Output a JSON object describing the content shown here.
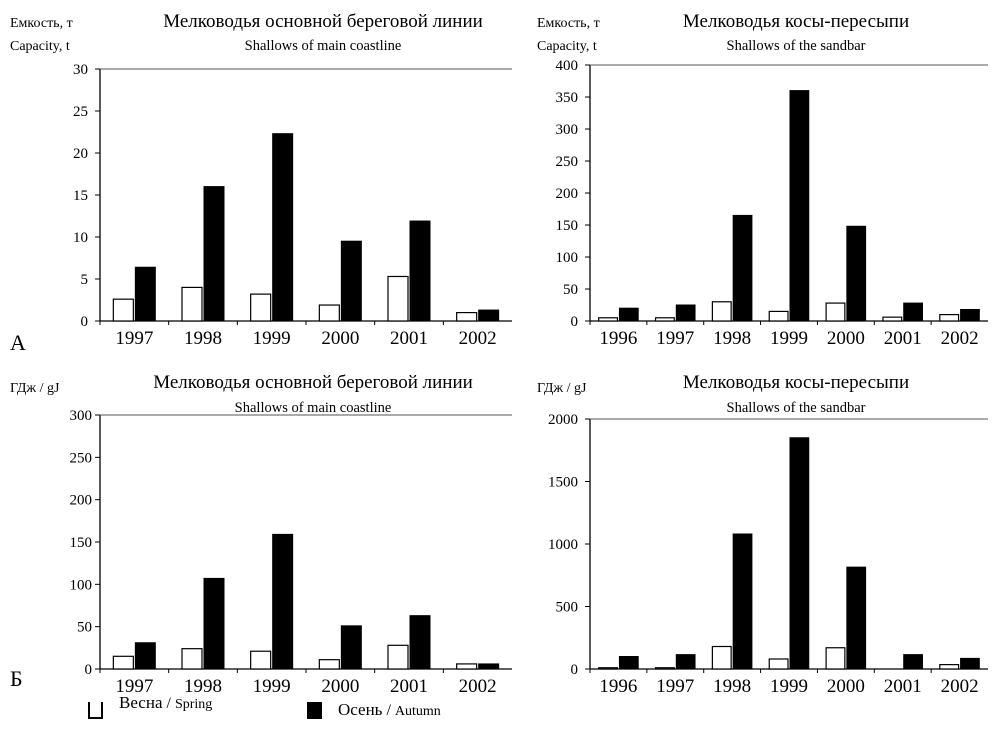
{
  "panel_letters": [
    "А",
    "Б"
  ],
  "legend": {
    "spring": {
      "ru": "Весна",
      "sep": " / ",
      "en": "Spring",
      "color": "#ffffff"
    },
    "autumn": {
      "ru": "Осень",
      "sep": " / ",
      "en": "Autumn",
      "color": "#000000"
    }
  },
  "chart_data": [
    {
      "type": "bar",
      "title": "Мелководья основной береговой линии",
      "subtitle": "Shallows of main coastline",
      "ylabel": [
        "Емкость, т",
        "Capacity, t"
      ],
      "ylim": [
        0,
        30
      ],
      "yticks": [
        0,
        5,
        10,
        15,
        20,
        25,
        30
      ],
      "categories": [
        "1997",
        "1998",
        "1999",
        "2000",
        "2001",
        "2002"
      ],
      "series": [
        {
          "name": "Весна / Spring",
          "values": [
            2.6,
            4.0,
            3.2,
            1.9,
            5.3,
            1.0
          ]
        },
        {
          "name": "Осень / Autumn",
          "values": [
            6.4,
            16.0,
            22.3,
            9.5,
            11.9,
            1.3
          ]
        }
      ]
    },
    {
      "type": "bar",
      "title": "Мелководья косы-пересыпи",
      "subtitle": "Shallows of the sandbar",
      "ylabel": [
        "Емкость, т",
        "Capacity, t"
      ],
      "ylim": [
        0,
        400
      ],
      "yticks": [
        0,
        50,
        100,
        150,
        200,
        250,
        300,
        350,
        400
      ],
      "categories": [
        "1996",
        "1997",
        "1998",
        "1999",
        "2000",
        "2001",
        "2002"
      ],
      "series": [
        {
          "name": "Весна / Spring",
          "values": [
            5,
            5,
            30,
            15,
            28,
            6,
            10
          ]
        },
        {
          "name": "Осень / Autumn",
          "values": [
            20,
            25,
            165,
            360,
            148,
            28,
            18
          ]
        }
      ]
    },
    {
      "type": "bar",
      "title": "Мелководья основной береговой линии",
      "subtitle": "Shallows of main coastline",
      "ylabel": [
        "ГДж / gJ"
      ],
      "ylim": [
        0,
        300
      ],
      "yticks": [
        0,
        50,
        100,
        150,
        200,
        250,
        300
      ],
      "categories": [
        "1997",
        "1998",
        "1999",
        "2000",
        "2001",
        "2002"
      ],
      "series": [
        {
          "name": "Весна / Spring",
          "values": [
            15,
            24,
            21,
            11,
            28,
            6
          ]
        },
        {
          "name": "Осень / Autumn",
          "values": [
            31,
            107,
            159,
            51,
            63,
            6
          ]
        }
      ]
    },
    {
      "type": "bar",
      "title": "Мелководья косы-пересыпи",
      "subtitle": "Shallows of the sandbar",
      "ylabel": [
        "ГДж / gJ"
      ],
      "ylim": [
        0,
        2000
      ],
      "yticks": [
        0,
        500,
        1000,
        1500,
        2000
      ],
      "categories": [
        "1996",
        "1997",
        "1998",
        "1999",
        "2000",
        "2001",
        "2002"
      ],
      "series": [
        {
          "name": "Весна / Spring",
          "values": [
            10,
            10,
            180,
            80,
            170,
            0,
            35
          ]
        },
        {
          "name": "Осень / Autumn",
          "values": [
            100,
            115,
            1080,
            1850,
            815,
            115,
            85
          ]
        }
      ]
    }
  ]
}
